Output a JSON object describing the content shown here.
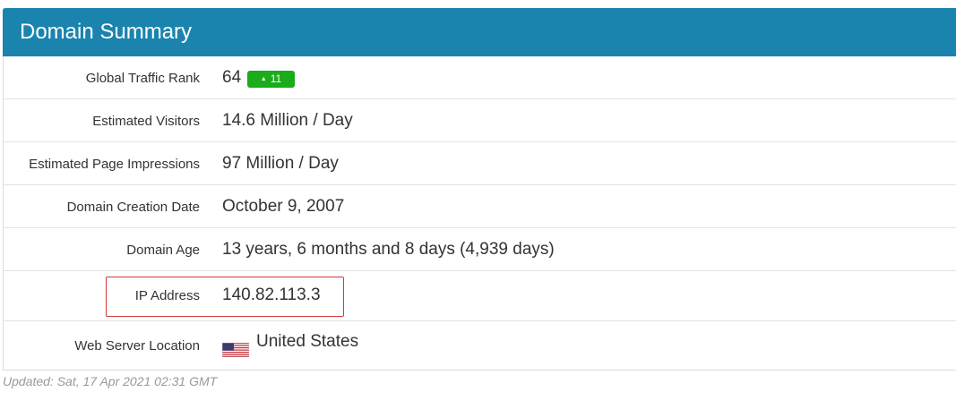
{
  "panel": {
    "title": "Domain Summary"
  },
  "rows": {
    "traffic_rank": {
      "label": "Global Traffic Rank",
      "value": "64",
      "change": "11"
    },
    "visitors": {
      "label": "Estimated Visitors",
      "value": "14.6 Million / Day"
    },
    "impressions": {
      "label": "Estimated Page Impressions",
      "value": "97 Million / Day"
    },
    "creation_date": {
      "label": "Domain Creation Date",
      "value": "October 9, 2007"
    },
    "age": {
      "label": "Domain Age",
      "value": "13 years, 6 months and 8 days (4,939 days)"
    },
    "ip": {
      "label": "IP Address",
      "value": "140.82.113.3"
    },
    "location": {
      "label": "Web Server Location",
      "value": "United States",
      "flag_icon": "us-flag-icon"
    }
  },
  "footer": {
    "updated": "Updated: Sat, 17 Apr 2021 02:31 GMT"
  },
  "colors": {
    "header": "#1a84ae",
    "badge_up": "#1aac1a",
    "highlight_border": "#d03a3a"
  }
}
